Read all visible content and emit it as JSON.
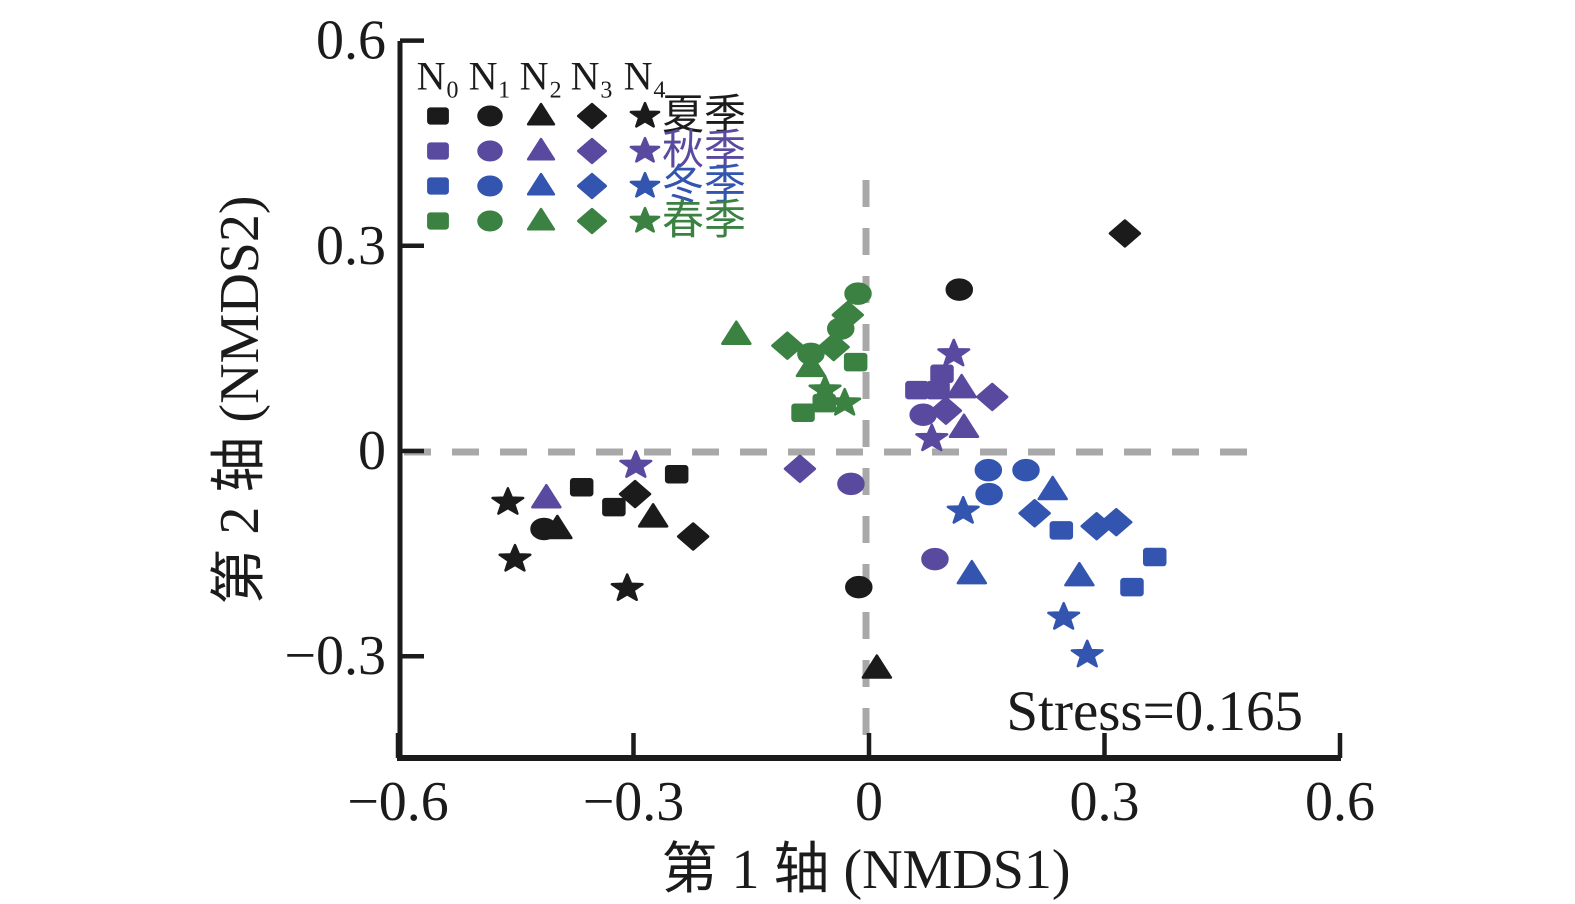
{
  "figure": {
    "background": "#ffffff",
    "axis_color": "#1b1b1b",
    "dashed_line_color": "#a8a8a8"
  },
  "chart_data": {
    "type": "scatter",
    "title": "",
    "xlabel": "第 1 轴 (NMDS1)",
    "ylabel": "第 2 轴 (NMDS2)",
    "annotation": "Stress=0.165",
    "xlim": [
      -0.6,
      0.6
    ],
    "ylim": [
      -0.45,
      0.6
    ],
    "grid": false,
    "zero_lines": {
      "style": "dashed",
      "color": "#a8a8a8"
    },
    "xticks": [
      {
        "v": -0.6,
        "label": "−0.6"
      },
      {
        "v": -0.3,
        "label": "−0.3"
      },
      {
        "v": 0,
        "label": "0"
      },
      {
        "v": 0.3,
        "label": "0.3"
      },
      {
        "v": 0.6,
        "label": "0.6"
      }
    ],
    "yticks": [
      {
        "v": 0.6,
        "label": "0.6"
      },
      {
        "v": 0.3,
        "label": "0.3"
      },
      {
        "v": 0,
        "label": "0"
      },
      {
        "v": -0.3,
        "label": "−0.3"
      }
    ],
    "legend": {
      "position": "top-left",
      "treatments": [
        "N₀",
        "N₁",
        "N₂",
        "N₃",
        "N₄"
      ],
      "treatment_markers": [
        "square",
        "circle",
        "triangle",
        "diamond",
        "star"
      ],
      "seasons": [
        {
          "label": "夏季",
          "color": "#1b1b1b"
        },
        {
          "label": "秋季",
          "color": "#5a4a9f"
        },
        {
          "label": "冬季",
          "color": "#3355b0"
        },
        {
          "label": "春季",
          "color": "#3a8142"
        }
      ]
    },
    "series": [
      {
        "name": "夏季",
        "color": "#1b1b1b",
        "points": [
          {
            "m": "square",
            "x": -0.366,
            "y": -0.053
          },
          {
            "m": "square",
            "x": -0.325,
            "y": -0.082
          },
          {
            "m": "square",
            "x": -0.245,
            "y": -0.034
          },
          {
            "m": "circle",
            "x": -0.414,
            "y": -0.114
          },
          {
            "m": "circle",
            "x": -0.013,
            "y": -0.199
          },
          {
            "m": "circle",
            "x": 0.115,
            "y": 0.236
          },
          {
            "m": "triangle",
            "x": -0.397,
            "y": -0.114
          },
          {
            "m": "triangle",
            "x": -0.275,
            "y": -0.097
          },
          {
            "m": "triangle",
            "x": 0.01,
            "y": -0.318
          },
          {
            "m": "diamond",
            "x": -0.298,
            "y": -0.063
          },
          {
            "m": "diamond",
            "x": -0.224,
            "y": -0.125
          },
          {
            "m": "diamond",
            "x": 0.326,
            "y": 0.318
          },
          {
            "m": "star",
            "x": -0.46,
            "y": -0.075
          },
          {
            "m": "star",
            "x": -0.451,
            "y": -0.158
          },
          {
            "m": "star",
            "x": -0.308,
            "y": -0.201
          }
        ]
      },
      {
        "name": "秋季",
        "color": "#5a4a9f",
        "points": [
          {
            "m": "square",
            "x": 0.061,
            "y": 0.089
          },
          {
            "m": "square",
            "x": 0.088,
            "y": 0.089
          },
          {
            "m": "square",
            "x": 0.093,
            "y": 0.113
          },
          {
            "m": "circle",
            "x": -0.023,
            "y": -0.048
          },
          {
            "m": "circle",
            "x": 0.069,
            "y": 0.053
          },
          {
            "m": "circle",
            "x": 0.084,
            "y": -0.158
          },
          {
            "m": "triangle",
            "x": -0.411,
            "y": -0.069
          },
          {
            "m": "triangle",
            "x": 0.118,
            "y": 0.092
          },
          {
            "m": "triangle",
            "x": 0.121,
            "y": 0.034
          },
          {
            "m": "diamond",
            "x": -0.088,
            "y": -0.026
          },
          {
            "m": "diamond",
            "x": 0.098,
            "y": 0.059
          },
          {
            "m": "diamond",
            "x": 0.157,
            "y": 0.079
          },
          {
            "m": "star",
            "x": -0.297,
            "y": -0.021
          },
          {
            "m": "star",
            "x": 0.108,
            "y": 0.142
          },
          {
            "m": "star",
            "x": 0.08,
            "y": 0.018
          }
        ]
      },
      {
        "name": "冬季",
        "color": "#3355b0",
        "points": [
          {
            "m": "square",
            "x": 0.245,
            "y": -0.116
          },
          {
            "m": "square",
            "x": 0.364,
            "y": -0.155
          },
          {
            "m": "square",
            "x": 0.335,
            "y": -0.199
          },
          {
            "m": "circle",
            "x": 0.152,
            "y": -0.028
          },
          {
            "m": "circle",
            "x": 0.2,
            "y": -0.028
          },
          {
            "m": "circle",
            "x": 0.153,
            "y": -0.063
          },
          {
            "m": "triangle",
            "x": 0.234,
            "y": -0.057
          },
          {
            "m": "triangle",
            "x": 0.131,
            "y": -0.18
          },
          {
            "m": "triangle",
            "x": 0.268,
            "y": -0.183
          },
          {
            "m": "diamond",
            "x": 0.211,
            "y": -0.091
          },
          {
            "m": "diamond",
            "x": 0.29,
            "y": -0.11
          },
          {
            "m": "diamond",
            "x": 0.315,
            "y": -0.104
          },
          {
            "m": "star",
            "x": 0.12,
            "y": -0.088
          },
          {
            "m": "star",
            "x": 0.248,
            "y": -0.243
          },
          {
            "m": "star",
            "x": 0.278,
            "y": -0.298
          }
        ]
      },
      {
        "name": "春季",
        "color": "#3a8142",
        "points": [
          {
            "m": "square",
            "x": -0.017,
            "y": 0.13
          },
          {
            "m": "square",
            "x": -0.057,
            "y": 0.07
          },
          {
            "m": "square",
            "x": -0.084,
            "y": 0.056
          },
          {
            "m": "circle",
            "x": -0.074,
            "y": 0.142
          },
          {
            "m": "circle",
            "x": -0.036,
            "y": 0.179
          },
          {
            "m": "circle",
            "x": -0.014,
            "y": 0.23
          },
          {
            "m": "triangle",
            "x": -0.169,
            "y": 0.17
          },
          {
            "m": "triangle",
            "x": -0.074,
            "y": 0.123
          },
          {
            "m": "diamond",
            "x": -0.104,
            "y": 0.154
          },
          {
            "m": "diamond",
            "x": -0.045,
            "y": 0.152
          },
          {
            "m": "diamond",
            "x": -0.027,
            "y": 0.199
          },
          {
            "m": "star",
            "x": -0.056,
            "y": 0.089
          },
          {
            "m": "star",
            "x": -0.031,
            "y": 0.07
          }
        ]
      }
    ]
  }
}
